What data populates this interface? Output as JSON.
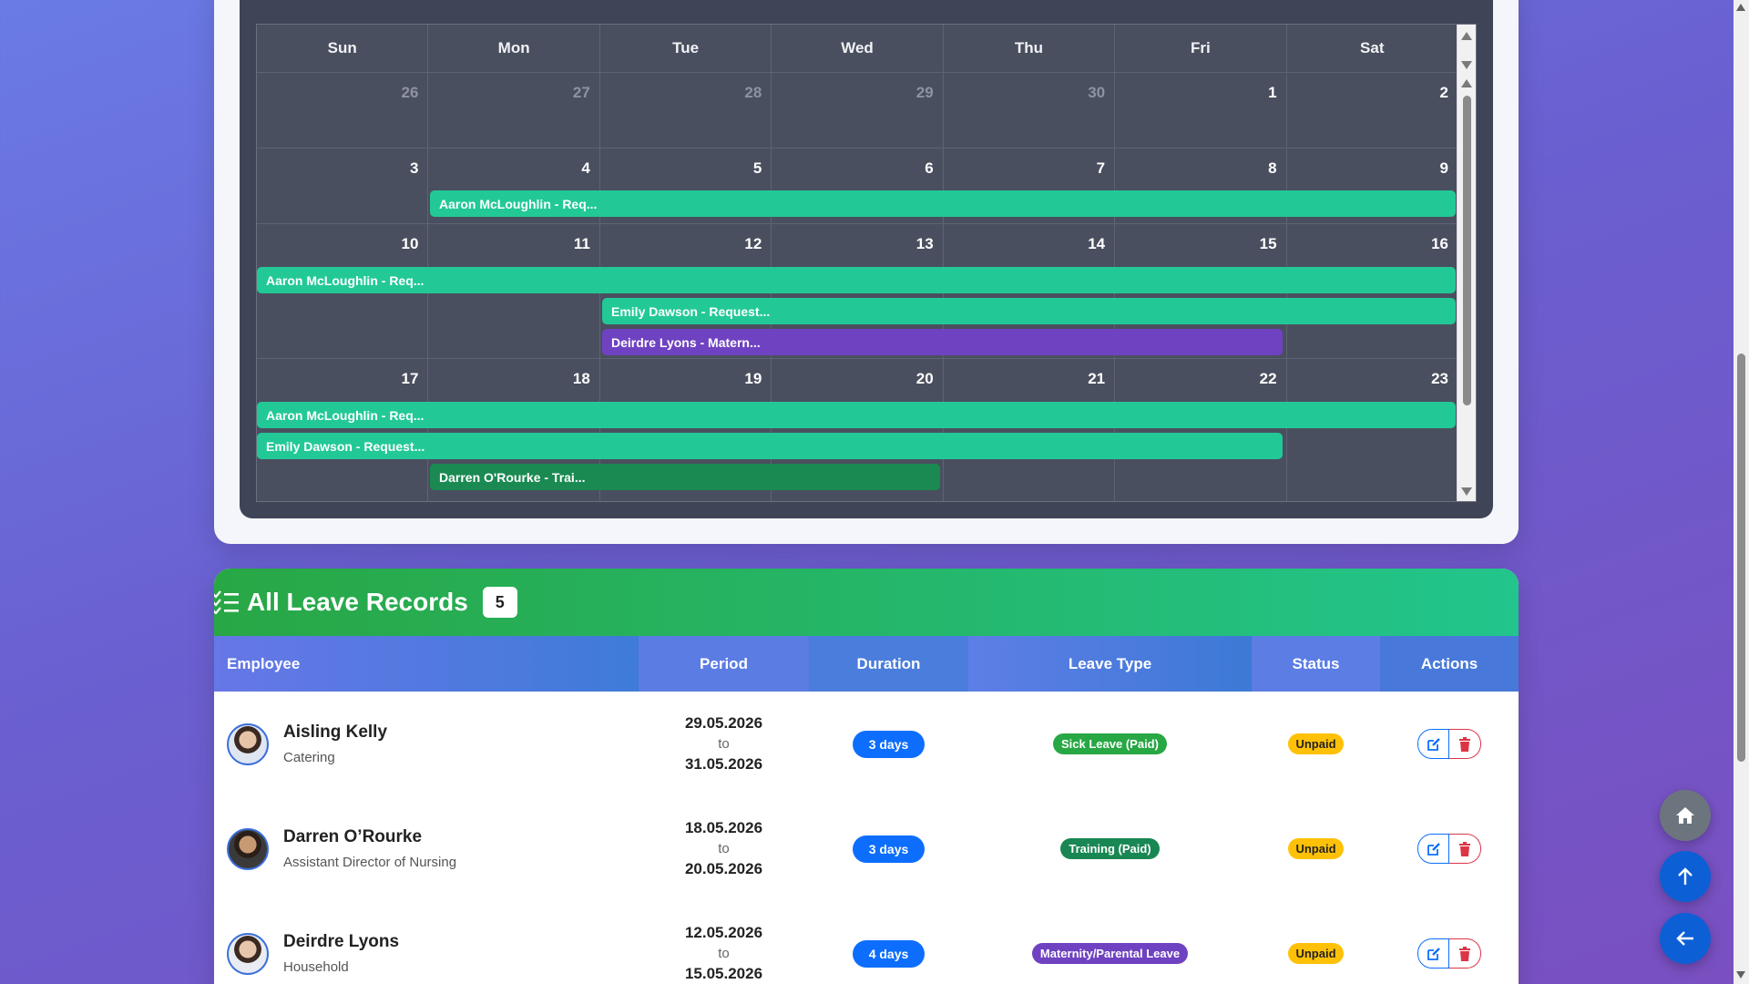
{
  "calendar": {
    "weekdays": [
      "Sun",
      "Mon",
      "Tue",
      "Wed",
      "Thu",
      "Fri",
      "Sat"
    ],
    "weeks": [
      {
        "days": [
          "26",
          "27",
          "28",
          "29",
          "30",
          "1",
          "2"
        ]
      },
      {
        "days": [
          "3",
          "4",
          "5",
          "6",
          "7",
          "8",
          "9"
        ]
      },
      {
        "days": [
          "10",
          "11",
          "12",
          "13",
          "14",
          "15",
          "16"
        ]
      },
      {
        "days": [
          "17",
          "18",
          "19",
          "20",
          "21",
          "22",
          "23"
        ]
      }
    ],
    "events": {
      "w2_e1": "Aaron McLoughlin - Req...",
      "w3_e1": "Aaron McLoughlin - Req...",
      "w3_e2": "Emily Dawson - Request...",
      "w3_e3": "Deirdre Lyons - Matern...",
      "w4_e1": "Aaron McLoughlin - Req...",
      "w4_e2": "Emily Dawson - Request...",
      "w4_e3": "Darren O'Rourke - Trai..."
    }
  },
  "records": {
    "title": "All Leave Records",
    "count": "5",
    "columns": {
      "employee": "Employee",
      "period": "Period",
      "duration": "Duration",
      "leave_type": "Leave Type",
      "status": "Status",
      "actions": "Actions"
    },
    "to_label": "to",
    "rows": [
      {
        "name": "Aisling Kelly",
        "dept": "Catering",
        "from": "29.05.2026",
        "to": "31.05.2026",
        "duration": "3 days",
        "leave_type": "Sick Leave (Paid)",
        "leave_color": "#28a745",
        "status": "Unpaid"
      },
      {
        "name": "Darren O’Rourke",
        "dept": "Assistant Director of Nursing",
        "from": "18.05.2026",
        "to": "20.05.2026",
        "duration": "3 days",
        "leave_type": "Training (Paid)",
        "leave_color": "#198754",
        "status": "Unpaid"
      },
      {
        "name": "Deirdre Lyons",
        "dept": "Household",
        "from": "12.05.2026",
        "to": "15.05.2026",
        "duration": "4 days",
        "leave_type": "Maternity/Parental Leave",
        "leave_color": "#6f42c1",
        "status": "Unpaid"
      }
    ]
  },
  "colors": {
    "event_teal": "#22c997",
    "event_purple": "#6f42c1",
    "event_green": "#1a8a52",
    "primary": "#0d6efd",
    "danger": "#dc3545",
    "warning": "#ffc107"
  },
  "icons": {
    "records_header": "list-check-icon",
    "edit": "edit-icon",
    "delete": "trash-icon",
    "home": "home-icon",
    "scroll_top": "arrow-up-icon",
    "back": "arrow-left-icon"
  }
}
